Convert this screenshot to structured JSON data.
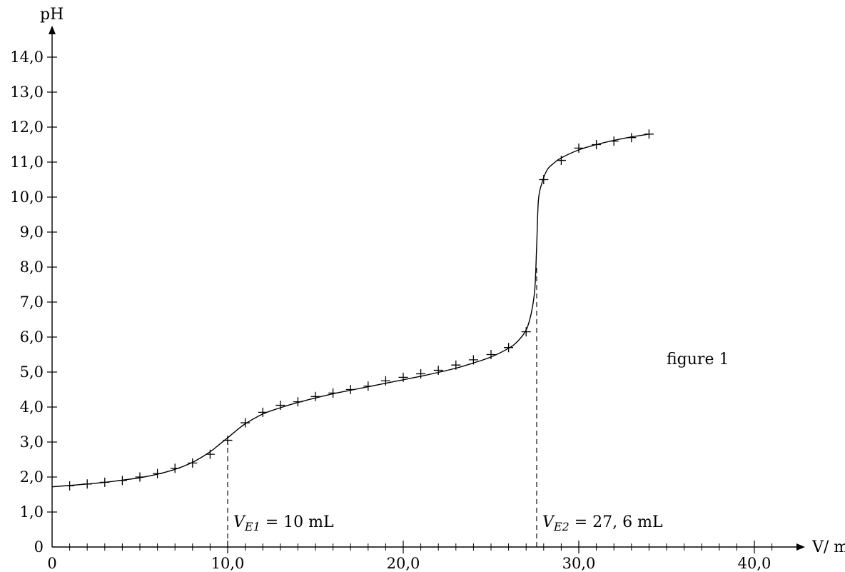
{
  "chart_data": {
    "type": "scatter",
    "xlabel": "V/ mL",
    "ylabel": "pH",
    "xlim": [
      0,
      42
    ],
    "ylim": [
      0,
      14.5
    ],
    "grid": false,
    "x_ticks": [
      0,
      10,
      20,
      30,
      40
    ],
    "x_tick_labels": [
      "0",
      "10,0",
      "20,0",
      "30,0",
      "40,0"
    ],
    "x_minor_step": 1,
    "y_ticks": [
      0,
      1,
      2,
      3,
      4,
      5,
      6,
      7,
      8,
      9,
      10,
      11,
      12,
      13,
      14
    ],
    "y_tick_labels": [
      "0",
      "1,0",
      "2,0",
      "3,0",
      "4,0",
      "5,0",
      "6,0",
      "7,0",
      "8,0",
      "9,0",
      "10,0",
      "11,0",
      "12,0",
      "13,0",
      "14,0"
    ],
    "series": [
      {
        "marker": "+",
        "x": [
          1,
          2,
          3,
          4,
          5,
          6,
          7,
          8,
          9,
          10,
          11,
          12,
          13,
          14,
          15,
          16,
          17,
          18,
          19,
          20,
          21,
          22,
          23,
          24,
          25,
          26,
          27,
          28,
          29,
          30,
          31,
          32,
          33,
          34
        ],
        "y": [
          1.75,
          1.8,
          1.85,
          1.9,
          2.0,
          2.1,
          2.25,
          2.4,
          2.65,
          3.05,
          3.55,
          3.85,
          4.05,
          4.15,
          4.3,
          4.4,
          4.5,
          4.6,
          4.75,
          4.85,
          4.95,
          5.05,
          5.2,
          5.35,
          5.5,
          5.7,
          6.15,
          10.5,
          11.05,
          11.4,
          11.5,
          11.6,
          11.7,
          11.8
        ]
      }
    ],
    "fitted_curve": {
      "x": [
        0,
        1,
        2,
        3,
        4,
        5,
        6,
        7,
        8,
        9,
        9.5,
        10,
        10.5,
        11,
        12,
        13,
        14,
        15,
        16,
        17,
        18,
        19,
        20,
        21,
        22,
        23,
        24,
        25,
        26,
        26.5,
        27,
        27.3,
        27.5,
        27.6,
        27.7,
        27.9,
        28.2,
        28.6,
        29,
        30,
        31,
        32,
        33,
        34
      ],
      "y": [
        1.72,
        1.76,
        1.8,
        1.85,
        1.91,
        1.98,
        2.08,
        2.22,
        2.42,
        2.72,
        2.92,
        3.12,
        3.33,
        3.52,
        3.8,
        3.98,
        4.13,
        4.26,
        4.38,
        4.48,
        4.58,
        4.68,
        4.78,
        4.88,
        4.99,
        5.11,
        5.26,
        5.43,
        5.68,
        5.87,
        6.2,
        6.7,
        7.4,
        8.6,
        9.9,
        10.4,
        10.78,
        10.98,
        11.12,
        11.35,
        11.5,
        11.62,
        11.72,
        11.8
      ]
    },
    "annotations": [
      {
        "at_x": 10,
        "to_y": 3.05,
        "label_var": "V",
        "label_sub": "E1",
        "label_rest": " = 10 mL"
      },
      {
        "at_x": 27.6,
        "to_y": 8.0,
        "label_var": "V",
        "label_sub": "E2",
        "label_rest": " = 27, 6 mL"
      }
    ],
    "figure_label": "figure 1"
  }
}
